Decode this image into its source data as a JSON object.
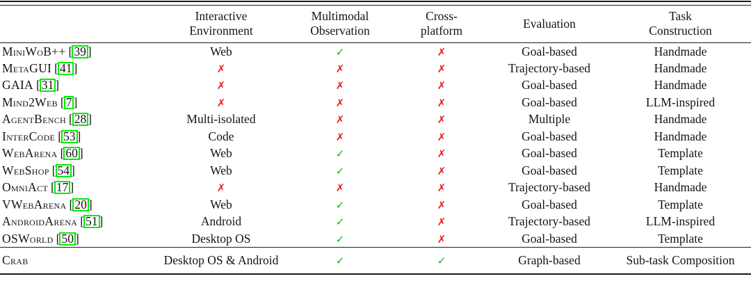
{
  "colors": {
    "check": "#0bb80b",
    "cross": "#ee1b1b",
    "citation_box": "#00ef00",
    "rule": "#1b1b1b"
  },
  "symbols": {
    "check": "✓",
    "cross": "✗"
  },
  "citation": {
    "open": "[",
    "close": "]"
  },
  "header": {
    "columns": [
      {
        "label": ""
      },
      {
        "label": "Interactive\nEnvironment"
      },
      {
        "label": "Multimodal\nObservation"
      },
      {
        "label": "Cross-\nplatform"
      },
      {
        "label": "Evaluation"
      },
      {
        "label": "Task\nConstruction"
      }
    ]
  },
  "rows": [
    {
      "name": "MiniWoB++",
      "citation": "39",
      "environment": "Web",
      "multimodal": "✓",
      "cross_platform": "✗",
      "evaluation": "Goal-based",
      "task_construction": "Handmade"
    },
    {
      "name": "MetaGUI",
      "citation": "41",
      "environment": "✗",
      "multimodal": "✗",
      "cross_platform": "✗",
      "evaluation": "Trajectory-based",
      "task_construction": "Handmade"
    },
    {
      "name": "GAIA",
      "citation": "31",
      "environment": "✗",
      "multimodal": "✗",
      "cross_platform": "✗",
      "evaluation": "Goal-based",
      "task_construction": "Handmade"
    },
    {
      "name": "Mind2Web",
      "citation": "7",
      "environment": "✗",
      "multimodal": "✗",
      "cross_platform": "✗",
      "evaluation": "Goal-based",
      "task_construction": "LLM-inspired"
    },
    {
      "name": "AgentBench",
      "citation": "28",
      "environment": "Multi-isolated",
      "multimodal": "✗",
      "cross_platform": "✗",
      "evaluation": "Multiple",
      "task_construction": "Handmade"
    },
    {
      "name": "InterCode",
      "citation": "53",
      "environment": "Code",
      "multimodal": "✗",
      "cross_platform": "✗",
      "evaluation": "Goal-based",
      "task_construction": "Handmade"
    },
    {
      "name": "WebArena",
      "citation": "60",
      "environment": "Web",
      "multimodal": "✓",
      "cross_platform": "✗",
      "evaluation": "Goal-based",
      "task_construction": "Template"
    },
    {
      "name": "WebShop",
      "citation": "54",
      "environment": "Web",
      "multimodal": "✓",
      "cross_platform": "✗",
      "evaluation": "Goal-based",
      "task_construction": "Template"
    },
    {
      "name": "OmniAct",
      "citation": "17",
      "environment": "✗",
      "multimodal": "✗",
      "cross_platform": "✗",
      "evaluation": "Trajectory-based",
      "task_construction": "Handmade"
    },
    {
      "name": "VWebArena",
      "citation": "20",
      "environment": "Web",
      "multimodal": "✓",
      "cross_platform": "✗",
      "evaluation": "Goal-based",
      "task_construction": "Template"
    },
    {
      "name": "AndroidArena",
      "citation": "51",
      "environment": "Android",
      "multimodal": "✓",
      "cross_platform": "✗",
      "evaluation": "Trajectory-based",
      "task_construction": "LLM-inspired"
    },
    {
      "name": "OSWorld",
      "citation": "50",
      "environment": "Desktop OS",
      "multimodal": "✓",
      "cross_platform": "✗",
      "evaluation": "Goal-based",
      "task_construction": "Template"
    }
  ],
  "footer_row": {
    "name": "Crab",
    "citation": null,
    "environment": "Desktop OS & Android",
    "multimodal": "✓",
    "cross_platform": "✓",
    "evaluation": "Graph-based",
    "task_construction": "Sub-task Composition"
  }
}
